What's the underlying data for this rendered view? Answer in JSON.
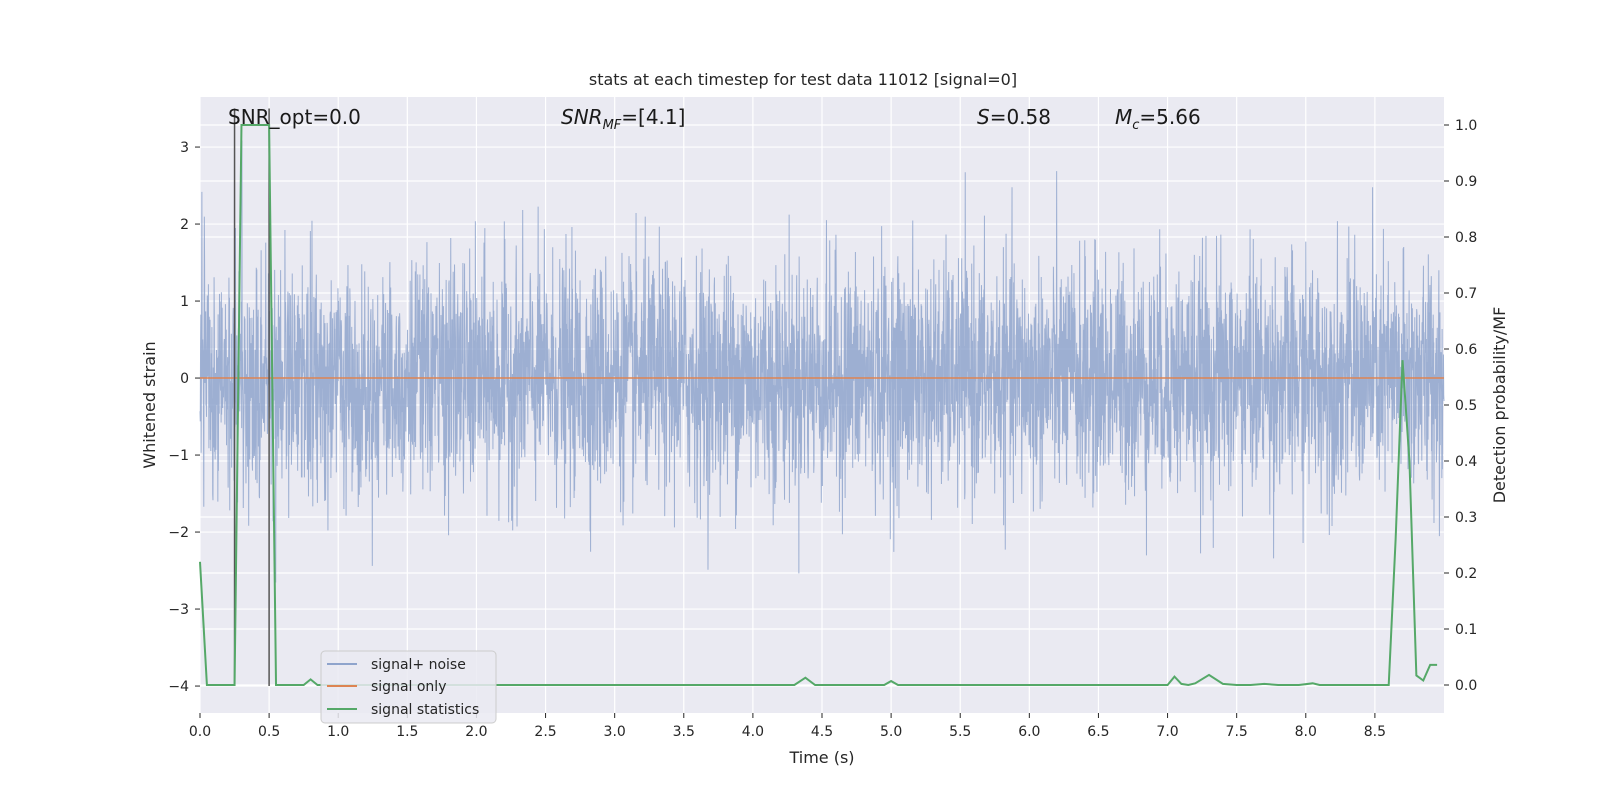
{
  "chart_data": {
    "type": "line",
    "title": "stats at each timestep for test data 11012 [signal=0]",
    "xlabel": "Time (s)",
    "ylabel_left": "Whitened strain",
    "ylabel_right": "Detection probability/MF",
    "xlim": [
      0.0,
      9.0
    ],
    "ylim_left": [
      -4.35,
      3.65
    ],
    "ylim_right": [
      -0.05,
      1.05
    ],
    "x_ticks": [
      "0.0",
      "0.5",
      "1.0",
      "1.5",
      "2.0",
      "2.5",
      "3.0",
      "3.5",
      "4.0",
      "4.5",
      "5.0",
      "5.5",
      "6.0",
      "6.5",
      "7.0",
      "7.5",
      "8.0",
      "8.5"
    ],
    "y_left_ticks": [
      "3",
      "2",
      "1",
      "0",
      "−1",
      "−2",
      "−3",
      "−4"
    ],
    "y_right_ticks": [
      "1.0",
      "0.9",
      "0.8",
      "0.7",
      "0.6",
      "0.5",
      "0.4",
      "0.3",
      "0.2",
      "0.1",
      "0.0"
    ],
    "grid": true,
    "legend_position": "lower-left",
    "annotations": {
      "snr_opt": "SNR_opt=0.0",
      "snr_mf_base": "SNR",
      "snr_mf_sub": "MF",
      "snr_mf_value": "=[4.1]",
      "s_var": "S",
      "s_value": "=0.58",
      "mc_base": "M",
      "mc_sub": "c",
      "mc_value": "=5.66"
    },
    "vertical_markers": [
      {
        "x": 0.25,
        "y_range": [
          -4.0,
          3.5
        ]
      },
      {
        "x": 0.5,
        "y_range": [
          -4.0,
          3.5
        ]
      }
    ],
    "series": [
      {
        "name": "signal+ noise",
        "color": "#8fa4cc",
        "axis": "left",
        "description_type": "gaussian-noise",
        "approx_std": 0.75
      },
      {
        "name": "signal only",
        "color": "#dd8452",
        "axis": "left",
        "x": [
          0.0,
          9.0
        ],
        "y": [
          0.0,
          0.0
        ]
      },
      {
        "name": "signal statistics",
        "color": "#55a868",
        "axis": "right",
        "x": [
          0.0,
          0.05,
          0.1,
          0.15,
          0.2,
          0.25,
          0.3,
          0.35,
          0.4,
          0.45,
          0.5,
          0.55,
          0.6,
          0.65,
          0.7,
          0.75,
          0.8,
          0.85,
          0.9,
          1.0,
          1.5,
          2.0,
          2.5,
          3.0,
          3.5,
          4.0,
          4.3,
          4.38,
          4.45,
          4.5,
          4.9,
          4.95,
          5.0,
          5.05,
          5.1,
          6.0,
          6.5,
          7.0,
          7.05,
          7.1,
          7.15,
          7.2,
          7.3,
          7.4,
          7.5,
          7.6,
          7.7,
          7.8,
          7.95,
          8.05,
          8.1,
          8.2,
          8.4,
          8.6,
          8.65,
          8.7,
          8.75,
          8.8,
          8.85,
          8.9,
          8.95
        ],
        "y": [
          0.22,
          0.0,
          0.0,
          0.0,
          0.0,
          0.0,
          1.0,
          1.0,
          1.0,
          1.0,
          1.0,
          0.0,
          0.0,
          0.0,
          0.0,
          0.0,
          0.01,
          0.0,
          0.0,
          0.0,
          0.0,
          0.0,
          0.0,
          0.0,
          0.0,
          0.0,
          0.0,
          0.013,
          0.0,
          0.0,
          0.0,
          0.0,
          0.007,
          0.0,
          0.0,
          0.0,
          0.0,
          0.0,
          0.015,
          0.002,
          0.0,
          0.003,
          0.018,
          0.002,
          0.0,
          0.0,
          0.002,
          0.0,
          0.0,
          0.003,
          0.0,
          0.0,
          0.0,
          0.0,
          0.26,
          0.58,
          0.4,
          0.017,
          0.008,
          0.036,
          0.036
        ]
      }
    ]
  }
}
